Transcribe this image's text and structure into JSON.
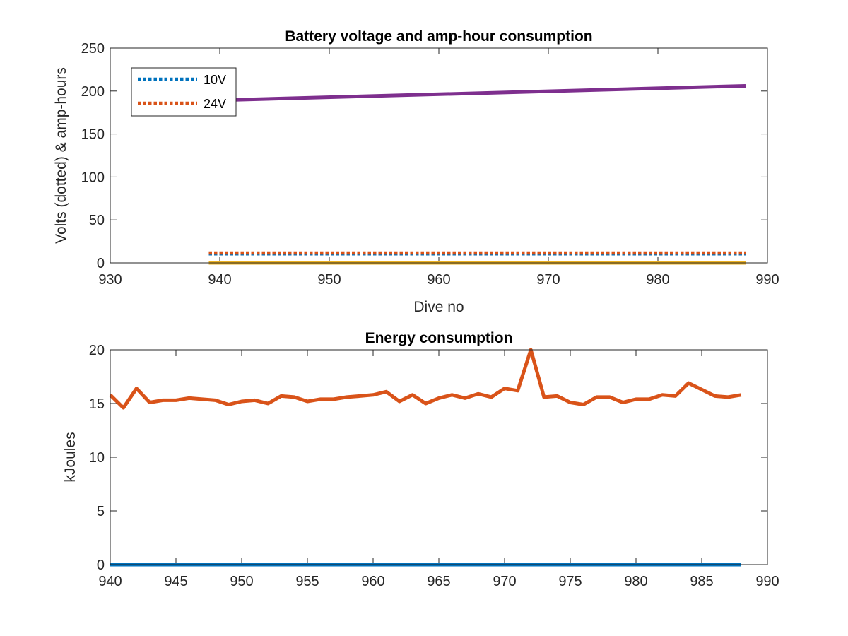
{
  "chart_data": [
    {
      "type": "line",
      "title": "Battery voltage and amp-hour consumption",
      "xlabel": "Dive no",
      "ylabel": "Volts (dotted) & amp-hours",
      "xlim": [
        930,
        990
      ],
      "ylim": [
        0,
        250
      ],
      "xticks": [
        930,
        940,
        950,
        960,
        970,
        980,
        990
      ],
      "yticks": [
        0,
        50,
        100,
        150,
        200,
        250
      ],
      "grid": false,
      "legend_position": "top-left",
      "series": [
        {
          "name": "10V",
          "style": "dotted",
          "color": "#0072BD",
          "x": [
            939,
            988
          ],
          "y": [
            10.5,
            10.5
          ]
        },
        {
          "name": "24V",
          "style": "dotted",
          "color": "#D95319",
          "x": [
            939,
            988
          ],
          "y": [
            11.5,
            11.5
          ]
        },
        {
          "style": "solid",
          "color": "#7E2F8E",
          "x": [
            939,
            988
          ],
          "y": [
            189,
            206
          ]
        },
        {
          "style": "solid",
          "color": "#EDB120",
          "x": [
            939,
            988
          ],
          "y": [
            0,
            0
          ]
        }
      ]
    },
    {
      "type": "line",
      "title": "Energy consumption",
      "xlabel": "",
      "ylabel": "kJoules",
      "xlim": [
        940,
        990
      ],
      "ylim": [
        0,
        20
      ],
      "xticks": [
        940,
        945,
        950,
        955,
        960,
        965,
        970,
        975,
        980,
        985,
        990
      ],
      "yticks": [
        0,
        5,
        10,
        15,
        20
      ],
      "grid": false,
      "series": [
        {
          "style": "solid",
          "color": "#D95319",
          "x": [
            940,
            941,
            942,
            943,
            944,
            945,
            946,
            947,
            948,
            949,
            950,
            951,
            952,
            953,
            954,
            955,
            956,
            957,
            958,
            959,
            960,
            961,
            962,
            963,
            964,
            965,
            966,
            967,
            968,
            969,
            970,
            971,
            972,
            973,
            974,
            975,
            976,
            977,
            978,
            979,
            980,
            981,
            982,
            983,
            984,
            985,
            986,
            987,
            988
          ],
          "y": [
            15.8,
            14.6,
            16.4,
            15.1,
            15.3,
            15.3,
            15.5,
            15.4,
            15.3,
            14.9,
            15.2,
            15.3,
            15.0,
            15.7,
            15.6,
            15.2,
            15.4,
            15.4,
            15.6,
            15.7,
            15.8,
            16.1,
            15.2,
            15.8,
            15.0,
            15.5,
            15.8,
            15.5,
            15.9,
            15.6,
            16.4,
            16.2,
            20.0,
            15.6,
            15.7,
            15.1,
            14.9,
            15.6,
            15.6,
            15.1,
            15.4,
            15.4,
            15.8,
            15.7,
            16.9,
            16.3,
            15.7,
            15.6,
            15.8
          ]
        },
        {
          "style": "solid",
          "color": "#0072BD",
          "x": [
            940,
            988
          ],
          "y": [
            0,
            0
          ]
        }
      ]
    }
  ]
}
